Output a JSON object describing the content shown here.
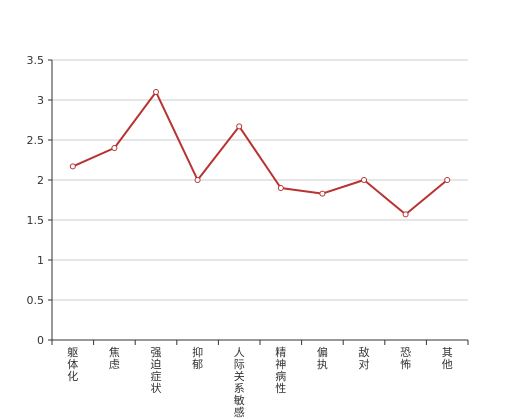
{
  "chart_data": {
    "type": "line",
    "categories": [
      "躯体化",
      "焦虑",
      "强迫症状",
      "抑郁",
      "人际关系敏感",
      "精神病性",
      "偏执",
      "敌对",
      "恐怖",
      "其他"
    ],
    "series": [
      {
        "values": [
          2.17,
          2.4,
          3.1,
          2.0,
          2.67,
          1.9,
          1.83,
          2.0,
          1.57,
          2.0
        ]
      }
    ],
    "ylim": [
      0,
      3.5
    ],
    "yticks": [
      0,
      0.5,
      1,
      1.5,
      2,
      2.5,
      3,
      3.5
    ],
    "ytick_labels": [
      "0",
      "0.5",
      "1",
      "1.5",
      "2",
      "2.5",
      "3",
      "3.5"
    ],
    "grid": true,
    "line_color": "#b83232",
    "marker_fill": "#ffffff",
    "grid_color": "#cccccc",
    "axis_color": "#333333"
  }
}
